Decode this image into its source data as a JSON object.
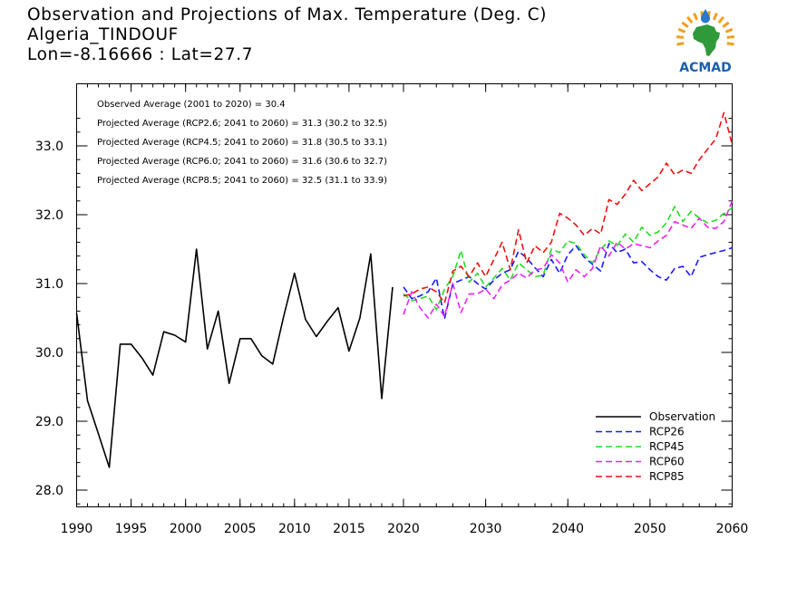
{
  "header": {
    "title": "Observation and Projections of Max. Temperature (Deg. C)",
    "location": "Algeria_TINDOUF",
    "coords": "Lon=-8.16666 : Lat=27.7"
  },
  "logo": {
    "text": "ACMAD",
    "colors": {
      "text": "#1b5fa8",
      "africa": "#2e9a3a",
      "rays": "#f0a020",
      "drop": "#2a78c8"
    }
  },
  "chart_data": {
    "type": "line",
    "title": "Observation and Projections of Max. Temperature (Deg. C)",
    "xlim": [
      1990,
      2060
    ],
    "ylim": [
      27.7,
      33.7
    ],
    "x_ticks_left": [
      "1990",
      "1995",
      "2000",
      "2005",
      "2010",
      "2015",
      "2020"
    ],
    "x_ticks_right": [
      "2030",
      "2040",
      "2050",
      "2060"
    ],
    "y_ticks": [
      "28.0",
      "29.0",
      "30.0",
      "31.0",
      "32.0",
      "33.0"
    ],
    "annotations": [
      "Observed Average (2001 to 2020) = 30.4",
      "Projected Average (RCP2.6; 2041 to 2060) = 31.3 (30.2 to 32.5)",
      "Projected Average (RCP4.5; 2041 to 2060) = 31.8 (30.5 to 33.1)",
      "Projected Average (RCP6.0; 2041 to 2060) = 31.6 (30.6 to 32.7)",
      "Projected Average (RCP8.5; 2041 to 2060) = 32.5 (31.1 to 33.9)"
    ],
    "legend_position": "bottom-right",
    "series": [
      {
        "name": "Observation",
        "color": "#000000",
        "dashed": false,
        "x_start": 1990,
        "values": [
          30.57,
          29.3,
          28.82,
          28.33,
          30.12,
          30.12,
          29.92,
          29.67,
          30.3,
          30.25,
          30.15,
          31.5,
          30.05,
          30.6,
          29.55,
          30.2,
          30.2,
          29.95,
          29.83,
          30.52,
          31.15,
          30.48,
          30.23,
          30.45,
          30.65,
          30.02,
          30.5,
          31.43,
          29.33,
          30.95
        ]
      },
      {
        "name": "RCP26",
        "color": "#1a1aff",
        "dashed": true,
        "x_start": 2020,
        "values": [
          30.95,
          30.78,
          30.82,
          30.88,
          31.08,
          30.49,
          31.0,
          31.05,
          31.1,
          31.0,
          30.92,
          31.05,
          31.15,
          31.2,
          31.47,
          31.37,
          31.23,
          31.1,
          31.35,
          31.15,
          31.42,
          31.55,
          31.38,
          31.28,
          31.18,
          31.58,
          31.45,
          31.5,
          31.3,
          31.32,
          31.2,
          31.1,
          31.05,
          31.22,
          31.25,
          31.1,
          31.38,
          31.42,
          31.45,
          31.48,
          31.52
        ]
      },
      {
        "name": "RCP45",
        "color": "#22dd22",
        "dashed": true,
        "x_start": 2020,
        "values": [
          30.85,
          30.75,
          30.78,
          30.82,
          30.62,
          30.92,
          31.1,
          31.48,
          31.02,
          31.15,
          30.95,
          31.08,
          31.22,
          31.05,
          31.3,
          31.2,
          31.1,
          31.12,
          31.5,
          31.45,
          31.62,
          31.58,
          31.42,
          31.3,
          31.5,
          31.62,
          31.55,
          31.72,
          31.6,
          31.82,
          31.7,
          31.75,
          31.88,
          32.12,
          31.9,
          32.05,
          31.95,
          31.88,
          31.92,
          32.02,
          32.1
        ]
      },
      {
        "name": "RCP60",
        "color": "#ee22ee",
        "dashed": true,
        "x_start": 2020,
        "values": [
          30.55,
          30.88,
          30.65,
          30.5,
          30.7,
          30.52,
          31.0,
          30.58,
          30.85,
          30.85,
          30.92,
          30.78,
          30.98,
          31.05,
          31.15,
          31.08,
          31.2,
          31.22,
          31.42,
          31.3,
          31.02,
          31.2,
          31.1,
          31.22,
          31.55,
          31.4,
          31.6,
          31.5,
          31.58,
          31.55,
          31.52,
          31.62,
          31.7,
          31.9,
          31.85,
          31.8,
          31.95,
          31.82,
          31.8,
          31.9,
          32.2
        ]
      },
      {
        "name": "RCP85",
        "color": "#ee1111",
        "dashed": true,
        "x_start": 2020,
        "values": [
          30.82,
          30.85,
          30.92,
          30.95,
          30.88,
          30.72,
          31.18,
          31.25,
          31.1,
          31.3,
          31.1,
          31.35,
          31.6,
          31.2,
          31.78,
          31.3,
          31.55,
          31.45,
          31.6,
          32.02,
          31.95,
          31.85,
          31.7,
          31.8,
          31.72,
          32.22,
          32.15,
          32.3,
          32.5,
          32.35,
          32.45,
          32.55,
          32.75,
          32.58,
          32.65,
          32.6,
          32.8,
          32.95,
          33.1,
          33.48,
          33.02
        ]
      }
    ]
  }
}
